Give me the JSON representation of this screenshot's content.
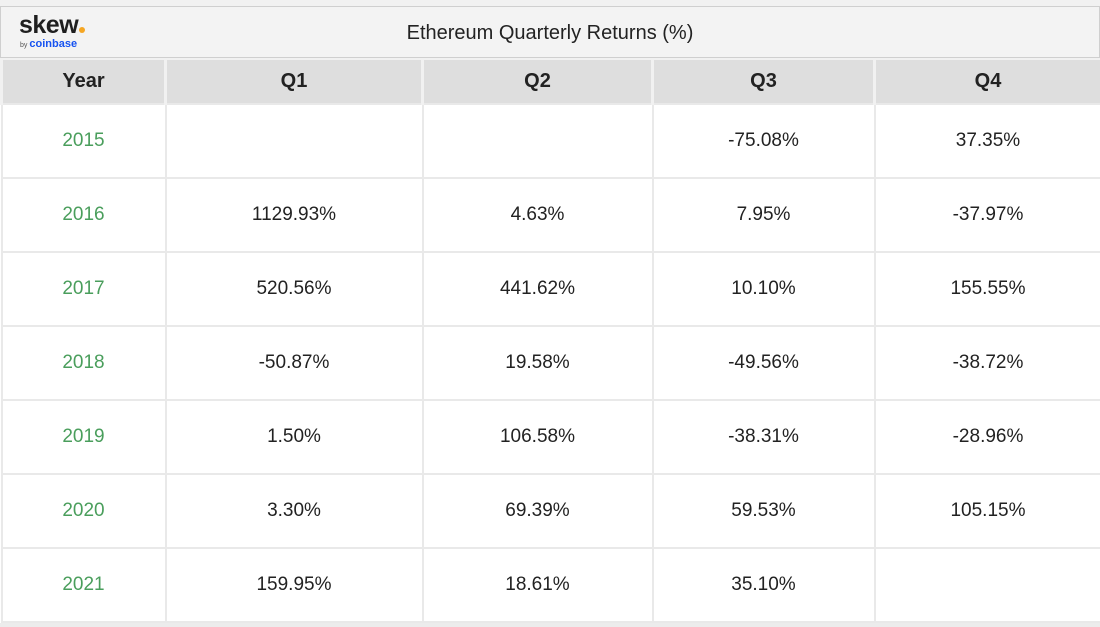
{
  "header": {
    "logo_text": "skew",
    "logo_by": "by",
    "logo_brand": "coinbase",
    "accent_color": "#f5a623",
    "brand_color": "#1652f0"
  },
  "chart_data": {
    "type": "table",
    "title": "Ethereum Quarterly Returns (%)",
    "columns": [
      "Year",
      "Q1",
      "Q2",
      "Q3",
      "Q4"
    ],
    "year_color": "#4a9e5c",
    "rows": [
      {
        "year": "2015",
        "q1": "",
        "q2": "",
        "q3": "-75.08%",
        "q4": "37.35%"
      },
      {
        "year": "2016",
        "q1": "1129.93%",
        "q2": "4.63%",
        "q3": "7.95%",
        "q4": "-37.97%"
      },
      {
        "year": "2017",
        "q1": "520.56%",
        "q2": "441.62%",
        "q3": "10.10%",
        "q4": "155.55%"
      },
      {
        "year": "2018",
        "q1": "-50.87%",
        "q2": "19.58%",
        "q3": "-49.56%",
        "q4": "-38.72%"
      },
      {
        "year": "2019",
        "q1": "1.50%",
        "q2": "106.58%",
        "q3": "-38.31%",
        "q4": "-28.96%"
      },
      {
        "year": "2020",
        "q1": "3.30%",
        "q2": "69.39%",
        "q3": "59.53%",
        "q4": "105.15%"
      },
      {
        "year": "2021",
        "q1": "159.95%",
        "q2": "18.61%",
        "q3": "35.10%",
        "q4": ""
      }
    ]
  }
}
